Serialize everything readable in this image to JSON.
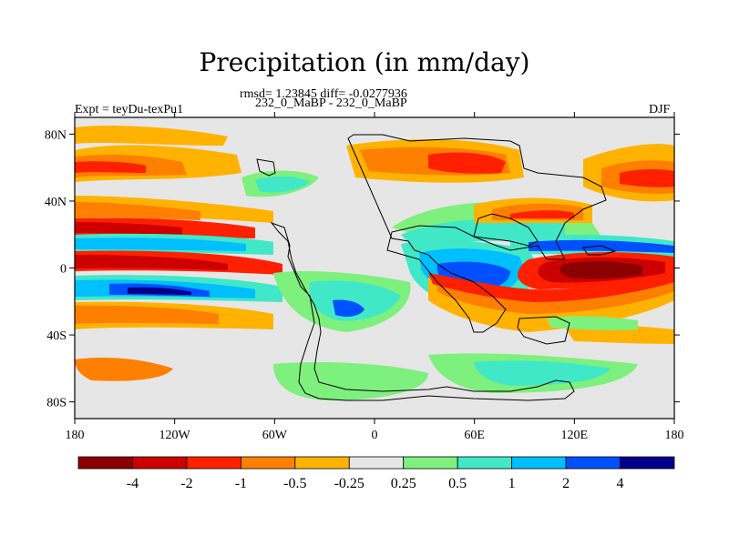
{
  "title": "Precipitation (in mm/day)",
  "stats_line": "rmsd= 1.23845 diff= -0.0277936",
  "runs_line": "232_0_MaBP - 232_0_MaBP",
  "expt_label": "Expt = teyDu-texPu1",
  "season": "DJF",
  "lat_ticks": [
    "80N",
    "40N",
    "0",
    "40S",
    "80S"
  ],
  "lon_ticks": [
    "180",
    "120W",
    "60W",
    "0",
    "60E",
    "120E",
    "180"
  ],
  "colorbar": {
    "colors": [
      "#8b0000",
      "#cd0000",
      "#ff2000",
      "#ff7f00",
      "#ffb300",
      "#e6e6e6",
      "#7ef07e",
      "#40e8c8",
      "#00bfff",
      "#0050ff",
      "#00008b"
    ],
    "labels": [
      "-4",
      "-2",
      "-1",
      "-0.5",
      "-0.25",
      "0.25",
      "0.5",
      "1",
      "2",
      "4"
    ]
  },
  "colors": {
    "background": "#e6e6e6",
    "coast": "#000000"
  }
}
